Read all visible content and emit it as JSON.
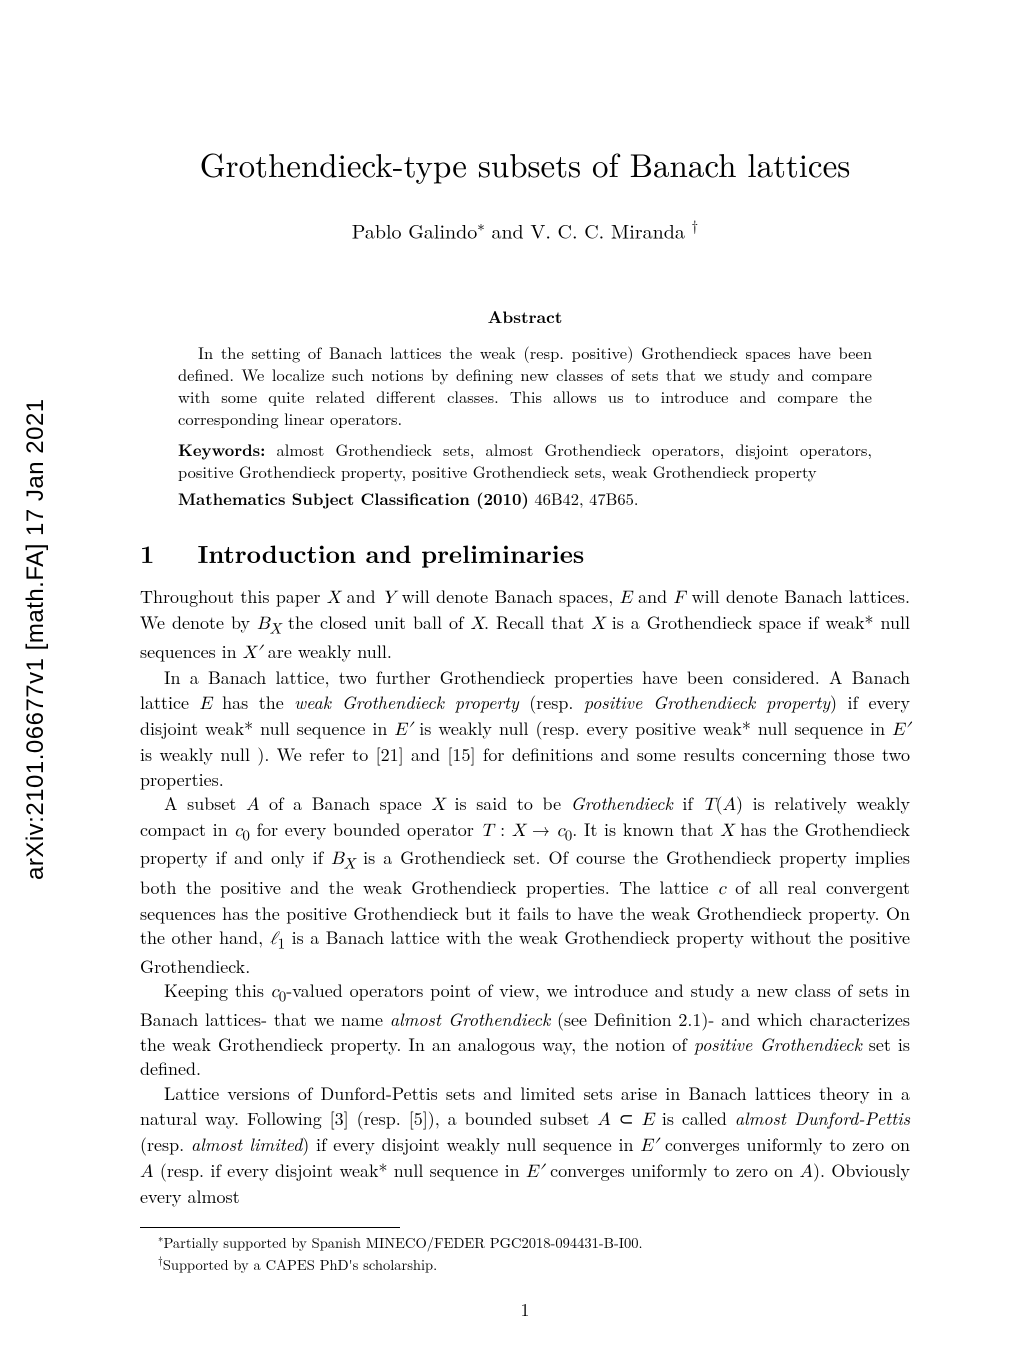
{
  "arxiv_stamp": "arXiv:2101.06677v1  [math.FA]  17 Jan 2021",
  "title": "Grothendieck-type subsets of Banach lattices",
  "authors_html": "Pablo Galindo<sup>∗</sup> and V. C. C. Miranda <sup>†</sup>",
  "abstract": {
    "heading": "Abstract",
    "body_html": "<span class=\"indent\">In the setting of Banach lattices the weak (resp. positive) Grothendieck spaces have been defined. We localize such notions by defining new classes of sets that we study and compare with some quite related different classes. This allows us to introduce and compare the corresponding linear operators.</span>"
  },
  "keywords": {
    "label": "Keywords:",
    "text": "   almost Grothendieck sets, almost Grothendieck operators, disjoint operators, positive Grothendieck property, positive Grothendieck sets, weak Grothendieck property"
  },
  "msc": {
    "label": " Mathematics Subject Classification (2010)",
    "text": "  46B42, 47B65."
  },
  "section": {
    "number": "1",
    "title": "Introduction and preliminaries"
  },
  "paragraphs": [
    "Throughout this paper <span class=\"math\">X</span> and <span class=\"math\">Y</span> will denote Banach spaces, <span class=\"math\">E</span> and <span class=\"math\">F</span> will denote Banach lattices. We denote by <span class=\"math\">B<sub>X</sub></span> the closed unit ball of <span class=\"math\">X</span>. Recall that <span class=\"math\">X</span> is a Grothendieck space if weak* null sequences in <span class=\"math\">X′</span> are weakly null.",
    "In a Banach lattice, two further Grothendieck properties have been considered. A Banach lattice <span class=\"math\">E</span> has the <span class=\"ital\">weak Grothendieck property</span> (resp. <span class=\"ital\">positive Grothendieck property</span>) if every disjoint weak* null sequence in <span class=\"math\">E′</span> is weakly null (resp. every positive weak* null sequence in <span class=\"math\">E′</span> is weakly null ). We refer to [21] and [15] for definitions and some results concerning those two properties.",
    "A subset <span class=\"math\">A</span> of a Banach space <span class=\"math\">X</span> is said to be <span class=\"ital\">Grothendieck</span> if <span class=\"math\">T</span>(<span class=\"math\">A</span>) is relatively weakly compact in <span class=\"math\">c</span><sub>0</sub> for every bounded operator <span class=\"math\">T</span> : <span class=\"math\">X</span> → <span class=\"math\">c</span><sub>0</sub>. It is known that <span class=\"math\">X</span> has the Grothendieck property if and only if <span class=\"math\">B<sub>X</sub></span> is a Grothendieck set. Of course the Grothendieck property implies both the positive and the weak Grothendieck properties. The lattice <span class=\"math\">c</span> of all real convergent sequences has the positive Grothendieck but it fails to have the weak Grothendieck property. On the other hand, <span class=\"math\">ℓ</span><sub>1</sub> is a Banach lattice with the weak Grothendieck property without the positive Grothendieck.",
    "Keeping this <span class=\"math\">c</span><sub>0</sub>-valued operators point of view, we introduce and study a new class of sets in Banach lattices- that we name <span class=\"ital\">almost Grothendieck</span> (see Definition 2.1)- and which characterizes the weak Grothendieck property. In an analogous way, the notion of <span class=\"ital\">positive Grothendieck</span> set is defined.",
    "Lattice versions of Dunford-Pettis sets and limited sets arise in Banach lattices theory in a natural way. Following [3] (resp. [5]), a bounded subset <span class=\"math\">A</span> ⊂ <span class=\"math\">E</span> is called <span class=\"ital\">almost Dunford-Pettis</span> (resp. <span class=\"ital\">almost limited</span>) if every disjoint weakly null sequence in <span class=\"math\">E′</span> converges uniformly to zero on <span class=\"math\">A</span> (resp. if every disjoint weak* null sequence in <span class=\"math\">E′</span> converges uniformly to zero on <span class=\"math\">A</span>). Obviously every almost"
  ],
  "footnotes": [
    "<sup>∗</sup>Partially supported by Spanish MINECO/FEDER PGC2018-094431-B-I00.",
    "<sup>†</sup>Supported by a CAPES PhD's scholarship."
  ],
  "page_number": "1",
  "colors": {
    "text": "#000000",
    "background": "#ffffff"
  },
  "fonts": {
    "title_size_pt": 25,
    "author_size_pt": 15,
    "body_size_pt": 13,
    "abstract_size_pt": 12,
    "footnote_size_pt": 11
  }
}
